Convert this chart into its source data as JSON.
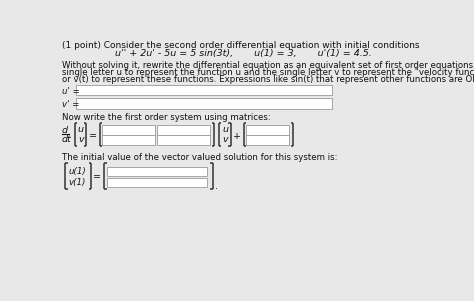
{
  "bg_color": "#e8e8e8",
  "title_line": "(1 point) Consider the second order differential equation with initial conditions",
  "equation": "u'' + 2u' - 5u = 5 sin(3t),       u(1) = 3,       u'(1) = 4.5.",
  "para1": "Without solving it, rewrite the differential equation as an equivalent set of first order equations. In your answer use the",
  "para2": "single letter u to represent the function u and the single letter v to represent the \"velocity function\" u'. Do not use u(t)",
  "para3": "or v(t) to represent these functions. Expressions like sin(t) that represent other functions are OK.",
  "uprime_label": "u' =",
  "vprime_label": "v' =",
  "matrix_label": "Now write the first order system using matrices:",
  "initial_label": "The initial value of the vector valued solution for this system is:",
  "input_bg": "#ffffff",
  "input_border": "#999999",
  "text_color": "#111111",
  "bracket_color": "#333333",
  "fs_title": 6.5,
  "fs_body": 6.2,
  "fs_math": 6.8
}
